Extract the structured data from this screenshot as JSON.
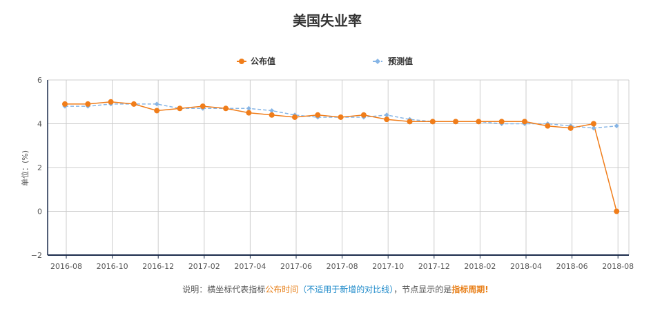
{
  "chart_data": {
    "type": "line",
    "title": "美国失业率",
    "ylabel": "单位：(%)",
    "xlabel": "",
    "ylim": [
      -2,
      6
    ],
    "y_ticks": [
      -2,
      0,
      2,
      4,
      6
    ],
    "x_tick_labels": [
      "2016-08",
      "2016-10",
      "2016-12",
      "2017-02",
      "2017-04",
      "2017-06",
      "2017-08",
      "2017-10",
      "2017-12",
      "2018-02",
      "2018-04",
      "2018-06",
      "2018-08"
    ],
    "grid": true,
    "legend_position": "top-center",
    "series": [
      {
        "name": "公布值",
        "color": "#f07d1a",
        "marker": "circle",
        "line": "solid",
        "values": [
          4.9,
          4.9,
          5.0,
          4.9,
          4.6,
          4.7,
          4.8,
          4.7,
          4.5,
          4.4,
          4.3,
          4.4,
          4.3,
          4.4,
          4.2,
          4.1,
          4.1,
          4.1,
          4.1,
          4.1,
          4.1,
          3.9,
          3.8,
          4.0,
          0.0
        ]
      },
      {
        "name": "预测值",
        "color": "#86b5e6",
        "marker": "diamond",
        "line": "dashed",
        "values": [
          4.8,
          4.8,
          4.9,
          4.9,
          4.9,
          4.7,
          4.7,
          4.7,
          4.7,
          4.6,
          4.4,
          4.3,
          4.3,
          4.3,
          4.4,
          4.2,
          4.1,
          4.1,
          4.1,
          4.0,
          4.0,
          4.0,
          3.9,
          3.8,
          3.9
        ]
      }
    ]
  },
  "note": {
    "prefix": "说明：横坐标代表指标",
    "highlight1": "公布时间",
    "paren": "（不适用于新增的对比线）",
    "middle": "，节点显示的是",
    "highlight2": "指标周期!"
  }
}
